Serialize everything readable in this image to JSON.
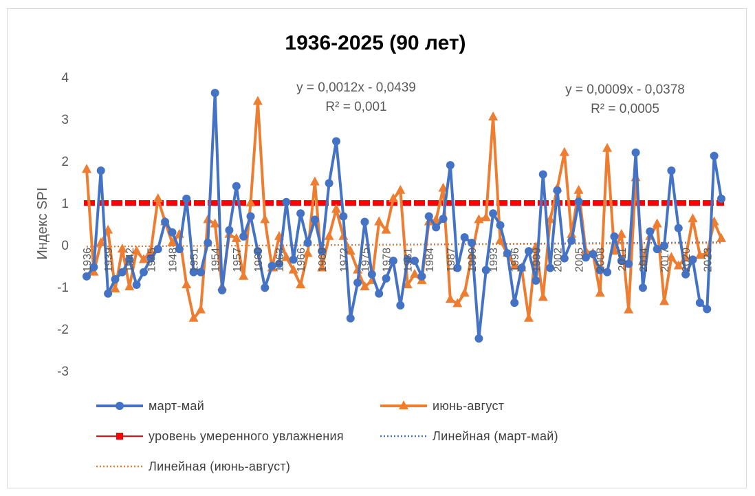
{
  "chart_data": {
    "type": "line",
    "title": "1936-2025  (90 лет)",
    "ylabel": "Индекс SPI",
    "xlabel": "",
    "ylim": [
      -3,
      4
    ],
    "y_ticks": [
      4,
      3,
      2,
      1,
      0,
      -1,
      -2,
      -3
    ],
    "grid": false,
    "legend_position": "bottom",
    "x": [
      1936,
      1937,
      1938,
      1939,
      1940,
      1941,
      1942,
      1943,
      1944,
      1945,
      1946,
      1947,
      1948,
      1949,
      1950,
      1951,
      1952,
      1953,
      1954,
      1955,
      1956,
      1957,
      1958,
      1959,
      1960,
      1961,
      1962,
      1963,
      1964,
      1965,
      1966,
      1967,
      1968,
      1969,
      1970,
      1971,
      1972,
      1973,
      1974,
      1975,
      1976,
      1977,
      1978,
      1979,
      1980,
      1981,
      1982,
      1983,
      1984,
      1985,
      1986,
      1987,
      1988,
      1989,
      1990,
      1991,
      1992,
      1993,
      1994,
      1995,
      1996,
      1997,
      1998,
      1999,
      2000,
      2001,
      2002,
      2003,
      2004,
      2005,
      2006,
      2007,
      2008,
      2009,
      2010,
      2011,
      2012,
      2013,
      2014,
      2015,
      2016,
      2017,
      2018,
      2019,
      2020,
      2021,
      2022,
      2023,
      2024,
      2025
    ],
    "x_tick_labels": [
      "1936",
      "1939",
      "1942",
      "1945",
      "1948",
      "1951",
      "1954",
      "1957",
      "1960",
      "1963",
      "1966",
      "1969",
      "1972",
      "1975",
      "1978",
      "1981",
      "1984",
      "1987",
      "1990",
      "1993",
      "1996",
      "1999",
      "2002",
      "2005",
      "2008",
      "2011",
      "2014",
      "2017",
      "2020",
      "2023"
    ],
    "series": [
      {
        "name": "март-май",
        "color": "#4472C4",
        "marker": "circle",
        "values": [
          -0.75,
          -0.53,
          1.77,
          -1.16,
          -0.82,
          -0.65,
          -0.35,
          -0.95,
          -0.65,
          -0.32,
          -0.1,
          0.55,
          0.3,
          -0.1,
          1.1,
          -0.65,
          -0.65,
          0.05,
          3.62,
          -1.08,
          0.35,
          1.4,
          0.2,
          0.68,
          -0.15,
          -1.02,
          -0.5,
          -0.45,
          1.02,
          -0.35,
          0.75,
          0.05,
          0.6,
          -0.15,
          1.47,
          2.47,
          0.68,
          -1.75,
          -0.9,
          0.55,
          -0.7,
          -1.16,
          -0.8,
          -0.38,
          -1.44,
          -0.35,
          -0.38,
          -0.75,
          0.68,
          0.42,
          0.62,
          1.9,
          -0.55,
          0.18,
          0.05,
          -2.23,
          -0.6,
          0.75,
          0.47,
          -0.2,
          -1.38,
          -0.55,
          -0.15,
          -0.85,
          1.68,
          -0.55,
          1.3,
          -0.32,
          0.1,
          1.03,
          -0.3,
          -0.22,
          -0.6,
          -0.65,
          0.2,
          -0.38,
          -0.45,
          2.2,
          -1.02,
          0.32,
          -0.1,
          -0.02,
          1.77,
          0.4,
          -0.7,
          -0.35,
          -1.38,
          -1.53,
          2.12,
          1.1
        ]
      },
      {
        "name": "июнь-август",
        "color": "#ED7D31",
        "marker": "triangle",
        "values": [
          1.8,
          -0.65,
          0.05,
          0.35,
          -1.05,
          -0.1,
          -1.0,
          -0.15,
          -0.35,
          -0.15,
          1.1,
          0.55,
          0.05,
          0.25,
          -0.95,
          -1.75,
          -1.55,
          0.6,
          0.5,
          -1.0,
          0.25,
          0.15,
          -0.75,
          1.0,
          3.42,
          0.6,
          -0.55,
          0.2,
          -0.3,
          -0.6,
          -0.95,
          -0.2,
          1.5,
          -0.55,
          0.2,
          0.85,
          0.2,
          -0.15,
          -0.6,
          -1.0,
          -0.85,
          0.55,
          0.35,
          1.1,
          1.3,
          -0.95,
          -0.7,
          -0.85,
          0.55,
          0.6,
          1.35,
          -1.3,
          -1.4,
          -1.15,
          -0.25,
          0.6,
          0.65,
          3.05,
          0.1,
          -0.2,
          -0.5,
          -0.55,
          -1.75,
          -0.05,
          -1.25,
          0.6,
          1.35,
          2.2,
          0.25,
          1.3,
          -0.15,
          -0.2,
          -1.15,
          2.3,
          -0.15,
          0.25,
          -1.55,
          1.6,
          -0.4,
          0.2,
          0.5,
          -1.35,
          -0.3,
          -0.5,
          -0.3,
          0.62,
          -0.25,
          -0.2,
          0.55,
          0.15
        ]
      },
      {
        "name": "уровень умеренного увлажнения",
        "color": "#FF0000",
        "style": "dashed",
        "marker": "square",
        "value": 1
      },
      {
        "name": "Линейная (март-май)",
        "color": "#4472C4",
        "style": "dotted",
        "trend": {
          "slope": 0.0012,
          "intercept": -0.0439
        }
      },
      {
        "name": "Линейная (июнь-август)",
        "color": "#ED7D31",
        "style": "dotted",
        "trend": {
          "slope": 0.0009,
          "intercept": -0.0378
        }
      }
    ],
    "annotations": [
      {
        "line1": "y = 0,0012x - 0,0439",
        "line2": "R² = 0,001"
      },
      {
        "line1": "y = 0,0009x - 0,0378",
        "line2": "R² = 0,0005"
      }
    ]
  }
}
